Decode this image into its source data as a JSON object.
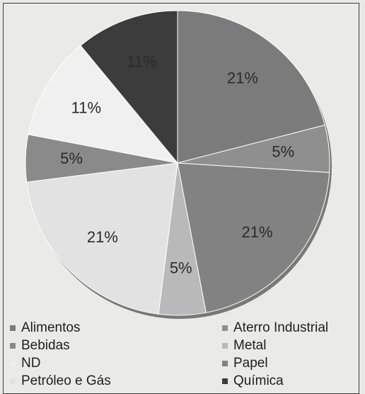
{
  "chart_data": {
    "type": "pie",
    "title": "",
    "categories": [
      "Alimentos",
      "Aterro Industrial",
      "Bebidas",
      "Metal",
      "ND",
      "Papel",
      "Petróleo e Gás",
      "Química"
    ],
    "slices": [
      {
        "name": "Alimentos",
        "value": 21,
        "label": "21%",
        "color": "#7b7b7b"
      },
      {
        "name": "Aterro Industrial",
        "value": 5,
        "label": "5%",
        "color": "#8f8f8f"
      },
      {
        "name": "Papel",
        "value": 21,
        "label": "21%",
        "color": "#828282"
      },
      {
        "name": "Metal",
        "value": 5,
        "label": "5%",
        "color": "#b9b9b9"
      },
      {
        "name": "Petróleo e Gás",
        "value": 21,
        "label": "21%",
        "color": "#e2e2e2"
      },
      {
        "name": "Bebidas",
        "value": 5,
        "label": "5%",
        "color": "#8a8a8a"
      },
      {
        "name": "ND",
        "value": 11,
        "label": "11%",
        "color": "#f0f0f0"
      },
      {
        "name": "Química",
        "value": 11,
        "label": "11%",
        "color": "#3c3c3c"
      }
    ],
    "legend_position": "bottom",
    "legend": [
      {
        "name": "Alimentos",
        "color": "#7b7b7b"
      },
      {
        "name": "Aterro Industrial",
        "color": "#8f8f8f"
      },
      {
        "name": "Bebidas",
        "color": "#8a8a8a"
      },
      {
        "name": "Metal",
        "color": "#b9b9b9"
      },
      {
        "name": "ND",
        "color": "#f0f0f0"
      },
      {
        "name": "Papel",
        "color": "#828282"
      },
      {
        "name": "Petróleo e Gás",
        "color": "#e2e2e2"
      },
      {
        "name": "Química",
        "color": "#3c3c3c"
      }
    ]
  }
}
